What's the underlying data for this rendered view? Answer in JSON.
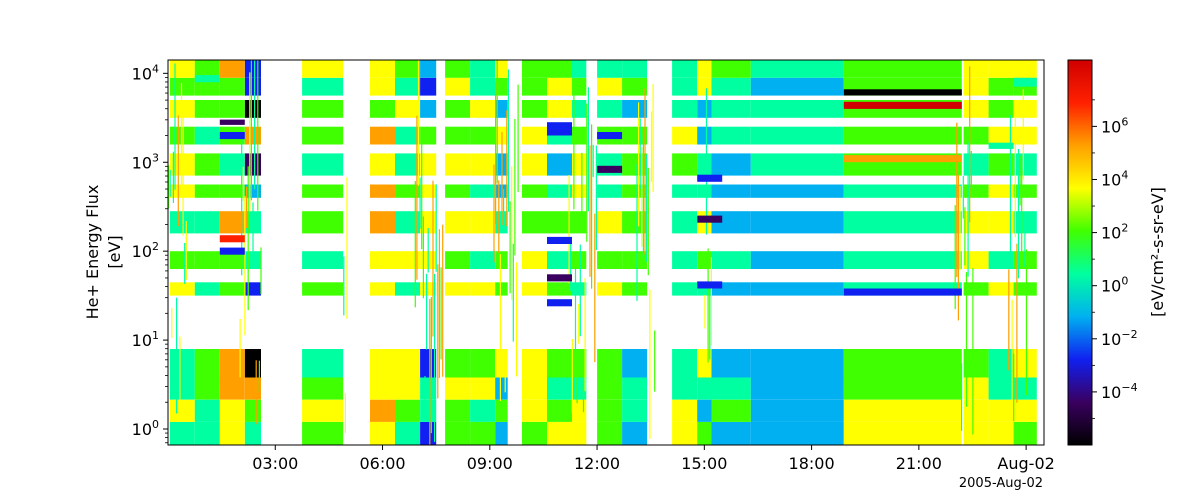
{
  "chart_data": {
    "type": "heatmap",
    "title": "",
    "ylabel_line1": "He+ Energy Flux",
    "ylabel_line2": "[eV]",
    "colorbar_label": "[eV/cm²-s-sr-eV]",
    "date_label": "2005-Aug-02",
    "x_range_hours": [
      0.0,
      24.5
    ],
    "y_range_log10": [
      -0.18,
      4.15
    ],
    "y_scale": "log",
    "grid": false,
    "x_ticks": [
      {
        "label": "03:00",
        "hour": 3
      },
      {
        "label": "06:00",
        "hour": 6
      },
      {
        "label": "09:00",
        "hour": 9
      },
      {
        "label": "12:00",
        "hour": 12
      },
      {
        "label": "15:00",
        "hour": 15
      },
      {
        "label": "18:00",
        "hour": 18
      },
      {
        "label": "21:00",
        "hour": 21
      },
      {
        "label": "Aug-02",
        "hour": 24
      }
    ],
    "y_ticks": [
      {
        "base": "10",
        "exp": "0",
        "log": 0
      },
      {
        "base": "10",
        "exp": "1",
        "log": 1
      },
      {
        "base": "10",
        "exp": "2",
        "log": 2
      },
      {
        "base": "10",
        "exp": "3",
        "log": 3
      },
      {
        "base": "10",
        "exp": "4",
        "log": 4
      }
    ],
    "colorbar": {
      "scale": "log",
      "range_log10": [
        -6,
        8.5
      ],
      "ticks": [
        {
          "base": "10",
          "exp": "6",
          "log": 6
        },
        {
          "base": "10",
          "exp": "4",
          "log": 4
        },
        {
          "base": "10",
          "exp": "2",
          "log": 2
        },
        {
          "base": "10",
          "exp": "0",
          "log": 0
        },
        {
          "base": "10",
          "exp": "−2",
          "log": -2
        },
        {
          "base": "10",
          "exp": "−4",
          "log": -4
        }
      ],
      "colors": [
        "#000000",
        "#3a0060",
        "#1020f0",
        "#00b0f0",
        "#00ffa0",
        "#40ff00",
        "#ffff00",
        "#ffa000",
        "#ff2000",
        "#d00000"
      ]
    },
    "columns": [
      {
        "t0": 0.05,
        "t1": 0.75,
        "low": 4,
        "high": 6
      },
      {
        "t0": 0.75,
        "t1": 1.45,
        "low": 4,
        "high": 5
      },
      {
        "t0": 1.45,
        "t1": 2.15,
        "low": 4,
        "high": 7
      },
      {
        "t0": 2.15,
        "t1": 2.6,
        "low": 0,
        "high": 7
      },
      {
        "t0": 3.75,
        "t1": 4.9,
        "low": 4,
        "high": 6
      },
      {
        "t0": 5.65,
        "t1": 6.35,
        "low": 5,
        "high": 7
      },
      {
        "t0": 6.35,
        "t1": 7.05,
        "low": 4,
        "high": 6
      },
      {
        "t0": 7.05,
        "t1": 7.5,
        "low": 2,
        "high": 6
      },
      {
        "t0": 7.75,
        "t1": 8.45,
        "low": 5,
        "high": 6
      },
      {
        "t0": 8.45,
        "t1": 9.15,
        "low": 4,
        "high": 6
      },
      {
        "t0": 9.15,
        "t1": 9.5,
        "low": 3,
        "high": 6
      },
      {
        "t0": 9.9,
        "t1": 10.6,
        "low": 5,
        "high": 6
      },
      {
        "t0": 10.6,
        "t1": 11.3,
        "low": 3,
        "high": 6
      },
      {
        "t0": 11.3,
        "t1": 11.7,
        "low": 4,
        "high": 6
      },
      {
        "t0": 12.0,
        "t1": 12.7,
        "low": 4,
        "high": 6
      },
      {
        "t0": 12.7,
        "t1": 13.4,
        "low": 3,
        "high": 5
      },
      {
        "t0": 14.1,
        "t1": 14.8,
        "low": 4,
        "high": 6
      },
      {
        "t0": 14.8,
        "t1": 15.2,
        "low": 3,
        "high": 6
      },
      {
        "t0": 15.2,
        "t1": 16.3,
        "low": 3,
        "high": 5
      },
      {
        "t0": 16.3,
        "t1": 18.9,
        "low": 3,
        "high": 4
      },
      {
        "t0": 18.9,
        "t1": 22.2,
        "low": 3,
        "high": 6
      },
      {
        "t0": 22.25,
        "t1": 22.95,
        "low": 4,
        "high": 6
      },
      {
        "t0": 22.95,
        "t1": 23.65,
        "low": 4,
        "high": 6
      },
      {
        "t0": 23.65,
        "t1": 24.3,
        "low": 4,
        "high": 6
      }
    ],
    "energy_bins_log10": [
      [
        -0.18,
        0.08
      ],
      [
        0.08,
        0.33
      ],
      [
        0.33,
        0.58
      ],
      [
        0.58,
        0.9
      ],
      [
        1.5,
        1.65
      ],
      [
        1.8,
        2.0
      ],
      [
        2.2,
        2.45
      ],
      [
        2.6,
        2.75
      ],
      [
        2.85,
        3.1
      ],
      [
        3.2,
        3.4
      ],
      [
        3.5,
        3.7
      ],
      [
        3.75,
        3.95
      ],
      [
        3.95,
        4.15
      ]
    ],
    "strong_bands": [
      {
        "t0": 18.9,
        "t1": 22.2,
        "lg0": 3.6,
        "lg1": 3.68,
        "level": 9
      },
      {
        "t0": 18.9,
        "t1": 22.2,
        "lg0": 3.75,
        "lg1": 3.82,
        "level": 0
      },
      {
        "t0": 18.9,
        "t1": 22.2,
        "lg0": 1.5,
        "lg1": 1.58,
        "level": 2
      },
      {
        "t0": 18.9,
        "t1": 22.2,
        "lg0": 3.0,
        "lg1": 3.08,
        "level": 7
      },
      {
        "t0": 10.6,
        "t1": 11.3,
        "lg0": 3.3,
        "lg1": 3.45,
        "level": 2
      },
      {
        "t0": 10.6,
        "t1": 11.3,
        "lg0": 2.08,
        "lg1": 2.16,
        "level": 2
      },
      {
        "t0": 10.6,
        "t1": 11.3,
        "lg0": 1.38,
        "lg1": 1.46,
        "level": 2
      },
      {
        "t0": 10.6,
        "t1": 11.3,
        "lg0": 1.66,
        "lg1": 1.74,
        "level": 1
      },
      {
        "t0": 1.45,
        "t1": 2.15,
        "lg0": 3.26,
        "lg1": 3.34,
        "level": 2
      },
      {
        "t0": 1.45,
        "t1": 2.15,
        "lg0": 3.42,
        "lg1": 3.48,
        "level": 1
      },
      {
        "t0": 1.45,
        "t1": 2.15,
        "lg0": 1.96,
        "lg1": 2.04,
        "level": 2
      },
      {
        "t0": 1.45,
        "t1": 2.15,
        "lg0": 2.1,
        "lg1": 2.18,
        "level": 8
      },
      {
        "t0": 12.0,
        "t1": 12.7,
        "lg0": 3.26,
        "lg1": 3.34,
        "level": 2
      },
      {
        "t0": 12.0,
        "t1": 12.7,
        "lg0": 2.88,
        "lg1": 2.96,
        "level": 1
      },
      {
        "t0": 14.8,
        "t1": 15.5,
        "lg0": 2.78,
        "lg1": 2.86,
        "level": 2
      },
      {
        "t0": 14.8,
        "t1": 15.5,
        "lg0": 1.58,
        "lg1": 1.66,
        "level": 2
      },
      {
        "t0": 14.8,
        "t1": 15.5,
        "lg0": 2.32,
        "lg1": 2.4,
        "level": 1
      },
      {
        "t0": 0.75,
        "t1": 1.45,
        "lg0": 3.9,
        "lg1": 3.98,
        "level": 4
      },
      {
        "t0": 22.95,
        "t1": 23.65,
        "lg0": 3.15,
        "lg1": 3.22,
        "level": 4
      },
      {
        "t0": 23.65,
        "t1": 24.3,
        "lg0": 3.85,
        "lg1": 3.95,
        "level": 4
      }
    ],
    "streaks": [
      {
        "t0": 0.0,
        "t1": 0.5
      },
      {
        "t0": 2.0,
        "t1": 2.6
      },
      {
        "t0": 4.9,
        "t1": 5.0
      },
      {
        "t0": 6.9,
        "t1": 7.7
      },
      {
        "t0": 9.1,
        "t1": 9.8
      },
      {
        "t0": 11.2,
        "t1": 12.0
      },
      {
        "t0": 13.1,
        "t1": 13.6
      },
      {
        "t0": 15.0,
        "t1": 15.2
      },
      {
        "t0": 22.0,
        "t1": 22.5
      },
      {
        "t0": 23.5,
        "t1": 24.0
      }
    ]
  }
}
